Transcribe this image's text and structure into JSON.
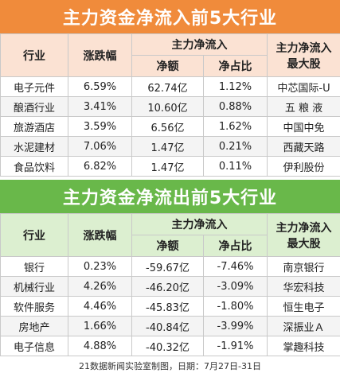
{
  "inflow": {
    "title": "主力资金净流入前5大行业",
    "headers": {
      "industry": "行业",
      "change": "涨跌幅",
      "main_flow": "主力净流入",
      "net_amount": "净额",
      "net_ratio": "净占比",
      "top_stock_line1": "主力净流入",
      "top_stock_line2": "最大股"
    },
    "rows": [
      {
        "industry": "电子元件",
        "change": "6.59%",
        "net_amount": "62.74亿",
        "net_ratio": "1.12%",
        "top_stock": "中芯国际-U"
      },
      {
        "industry": "酿酒行业",
        "change": "3.41%",
        "net_amount": "10.60亿",
        "net_ratio": "0.88%",
        "top_stock": "五 粮 液"
      },
      {
        "industry": "旅游酒店",
        "change": "3.59%",
        "net_amount": "6.56亿",
        "net_ratio": "1.62%",
        "top_stock": "中国中免"
      },
      {
        "industry": "水泥建材",
        "change": "7.06%",
        "net_amount": "1.47亿",
        "net_ratio": "0.21%",
        "top_stock": "西藏天路"
      },
      {
        "industry": "食品饮料",
        "change": "6.82%",
        "net_amount": "1.47亿",
        "net_ratio": "0.11%",
        "top_stock": "伊利股份"
      }
    ]
  },
  "outflow": {
    "title": "主力资金净流出前5大行业",
    "headers": {
      "industry": "行业",
      "change": "涨跌幅",
      "main_flow": "主力净流入",
      "net_amount": "净额",
      "net_ratio": "净占比",
      "top_stock_line1": "主力净流入",
      "top_stock_line2": "最大股"
    },
    "rows": [
      {
        "industry": "银行",
        "change": "0.23%",
        "net_amount": "-59.67亿",
        "net_ratio": "-7.46%",
        "top_stock": "南京银行"
      },
      {
        "industry": "机械行业",
        "change": "4.26%",
        "net_amount": "-46.20亿",
        "net_ratio": "-3.09%",
        "top_stock": "华宏科技"
      },
      {
        "industry": "软件服务",
        "change": "4.46%",
        "net_amount": "-45.83亿",
        "net_ratio": "-1.80%",
        "top_stock": "恒生电子"
      },
      {
        "industry": "房地产",
        "change": "1.66%",
        "net_amount": "-40.84亿",
        "net_ratio": "-3.99%",
        "top_stock": "深振业Ａ"
      },
      {
        "industry": "电子信息",
        "change": "4.88%",
        "net_amount": "-40.32亿",
        "net_ratio": "-1.91%",
        "top_stock": "掌趣科技"
      }
    ]
  },
  "footer": "21数据新闻实验室制图，日期：7月27日-31日",
  "colors": {
    "orange": "#f08b3b",
    "green": "#69b84a"
  }
}
